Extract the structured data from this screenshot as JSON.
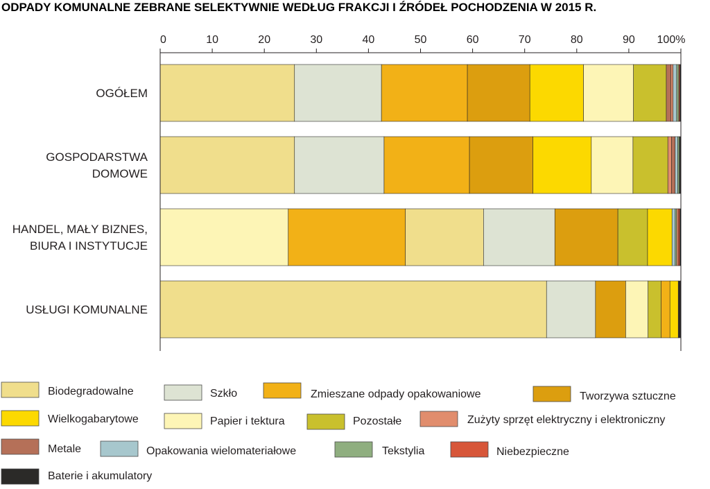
{
  "chart_data": {
    "type": "bar",
    "orientation": "horizontal",
    "stacked": true,
    "title": "ODPADY KOMUNALNE ZEBRANE SELEKTYWNIE WEDŁUG FRAKCJI I ŹRÓDEŁ POCHODZENIA W 2015 R.",
    "x_ticks": [
      "0",
      "10",
      "20",
      "30",
      "40",
      "50",
      "60",
      "70",
      "80",
      "90",
      "100%"
    ],
    "xlim": [
      0,
      100
    ],
    "grid": false,
    "legend_position": "bottom",
    "categories": [
      [
        "OGÓŁEM"
      ],
      [
        "GOSPODARSTWA",
        "DOMOWE"
      ],
      [
        "HANDEL, MAŁY BIZNES,",
        "BIURA I INSTYTUCJE"
      ],
      [
        "USŁUGI KOMUNALNE"
      ]
    ],
    "series_colors": {
      "Biodegradowalne": "#f0de8c",
      "Szkło": "#dde3d3",
      "Zmieszane odpady opakowaniowe": "#f2b117",
      "Tworzywa sztuczne": "#dc9e0f",
      "Wielkogabarytowe": "#fcd900",
      "Papier i tektura": "#fdf5b6",
      "Pozostałe": "#c9c02d",
      "Zużyty sprzęt elektryczny i elektroniczny": "#e18d6d",
      "Metale": "#b57058",
      "Opakowania wielomateriałowe": "#a7c7cd",
      "Tekstylia": "#8fae7f",
      "Niebezpieczne": "#d75639",
      "Baterie i akumulatory": "#2b2a28"
    },
    "bars": [
      [
        {
          "series": "Biodegradowalne",
          "value": 25.8
        },
        {
          "series": "Szkło",
          "value": 16.7
        },
        {
          "series": "Zmieszane odpady opakowaniowe",
          "value": 16.5
        },
        {
          "series": "Tworzywa sztuczne",
          "value": 12.0
        },
        {
          "series": "Wielkogabarytowe",
          "value": 10.3
        },
        {
          "series": "Papier i tektura",
          "value": 9.6
        },
        {
          "series": "Pozostałe",
          "value": 6.3
        },
        {
          "series": "Metale",
          "value": 0.9
        },
        {
          "series": "Zużyty sprzęt elektryczny i elektroniczny",
          "value": 0.4
        },
        {
          "series": "Opakowania wielomateriałowe",
          "value": 0.7
        },
        {
          "series": "Tekstylia",
          "value": 0.4
        },
        {
          "series": "Niebezpieczne",
          "value": 0.2
        },
        {
          "series": "Baterie i akumulatory",
          "value": 0.2
        }
      ],
      [
        {
          "series": "Biodegradowalne",
          "value": 25.8
        },
        {
          "series": "Szkło",
          "value": 17.2
        },
        {
          "series": "Zmieszane odpady opakowaniowe",
          "value": 16.4
        },
        {
          "series": "Tworzywa sztuczne",
          "value": 12.2
        },
        {
          "series": "Wielkogabarytowe",
          "value": 11.2
        },
        {
          "series": "Papier i tektura",
          "value": 8.0
        },
        {
          "series": "Pozostałe",
          "value": 6.7
        },
        {
          "series": "Zużyty sprzęt elektryczny i elektroniczny",
          "value": 0.7
        },
        {
          "series": "Metale",
          "value": 0.7
        },
        {
          "series": "Opakowania wielomateriałowe",
          "value": 0.5
        },
        {
          "series": "Tekstylia",
          "value": 0.3
        },
        {
          "series": "Baterie i akumulatory",
          "value": 0.3
        }
      ],
      [
        {
          "series": "Papier i tektura",
          "value": 24.6
        },
        {
          "series": "Zmieszane odpady opakowaniowe",
          "value": 22.5
        },
        {
          "series": "Biodegradowalne",
          "value": 15.0
        },
        {
          "series": "Szkło",
          "value": 13.7
        },
        {
          "series": "Tworzywa sztuczne",
          "value": 12.1
        },
        {
          "series": "Pozostałe",
          "value": 5.7
        },
        {
          "series": "Wielkogabarytowe",
          "value": 4.7
        },
        {
          "series": "Opakowania wielomateriałowe",
          "value": 0.6
        },
        {
          "series": "Tekstylia",
          "value": 0.3
        },
        {
          "series": "Zużyty sprzęt elektryczny i elektroniczny",
          "value": 0.3
        },
        {
          "series": "Niebezpieczne",
          "value": 0.3
        },
        {
          "series": "Baterie i akumulatory",
          "value": 0.2
        }
      ],
      [
        {
          "series": "Biodegradowalne",
          "value": 74.2
        },
        {
          "series": "Szkło",
          "value": 9.4
        },
        {
          "series": "Tworzywa sztuczne",
          "value": 5.8
        },
        {
          "series": "Papier i tektura",
          "value": 4.3
        },
        {
          "series": "Pozostałe",
          "value": 2.5
        },
        {
          "series": "Zmieszane odpady opakowaniowe",
          "value": 1.7
        },
        {
          "series": "Wielkogabarytowe",
          "value": 1.6
        },
        {
          "series": "Baterie i akumulatory",
          "value": 0.5
        }
      ]
    ],
    "legend": [
      "Biodegradowalne",
      "Szkło",
      "Zmieszane  odpady  opakowaniowe",
      "Tworzywa sztuczne",
      "Wielkogabarytowe",
      "Papier i tektura",
      "Pozostałe",
      "Zużyty sprzęt elektryczny  i elektroniczny",
      "Metale",
      "Opakowania wielomateriałowe",
      "Tekstylia",
      "Niebezpieczne",
      "Baterie i akumulatory"
    ]
  }
}
